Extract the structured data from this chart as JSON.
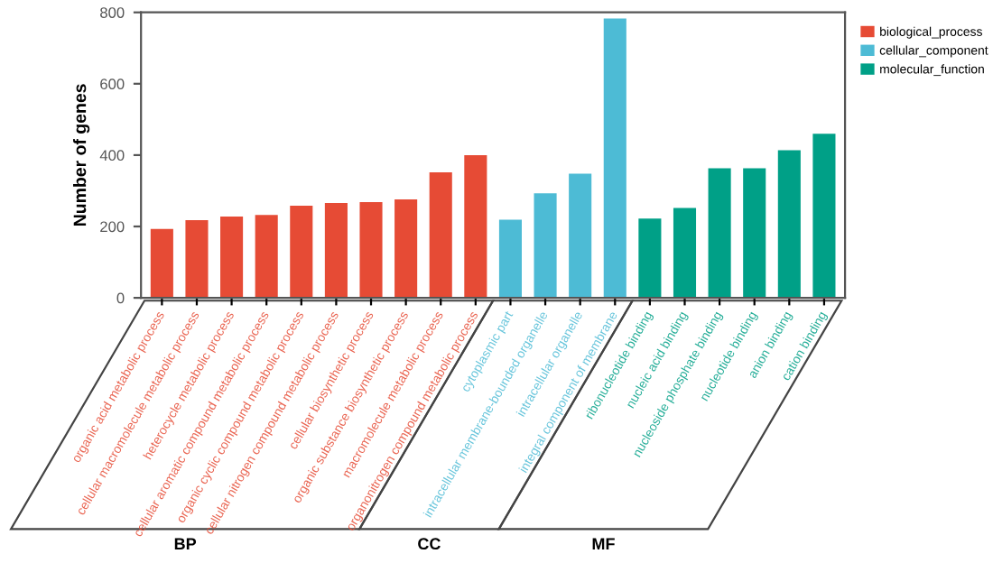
{
  "chart_data": {
    "type": "bar",
    "ylabel": "Number of genes",
    "categories": [
      "organic acid metabolic process",
      "cellular macromolecule metabolic process",
      "heterocycle metabolic process",
      "cellular aromatic compound metabolic process",
      "organic cyclic compound metabolic process",
      "cellular nitrogen compound metabolic process",
      "cellular biosynthetic process",
      "organic substance biosynthetic process",
      "macromolecule metabolic process",
      "organonitrogen compound metabolic process",
      "cytoplasmic part",
      "intracellular membrane-bounded organelle",
      "intracellular organelle",
      "integral component of membrane",
      "ribonucleotide binding",
      "nucleic acid binding",
      "nucleoside phosphate binding",
      "nucleotide binding",
      "anion binding",
      "cation binding"
    ],
    "series": [
      {
        "name": "biological_process",
        "color": "#e64b35",
        "values": [
          193,
          218,
          228,
          232,
          258,
          266,
          268,
          276,
          352,
          400,
          null,
          null,
          null,
          null,
          null,
          null,
          null,
          null,
          null,
          null
        ]
      },
      {
        "name": "cellular_component",
        "color": "#4dbbd5",
        "values": [
          null,
          null,
          null,
          null,
          null,
          null,
          null,
          null,
          null,
          null,
          219,
          293,
          348,
          783,
          null,
          null,
          null,
          null,
          null,
          null
        ]
      },
      {
        "name": "molecular_function",
        "color": "#00a087",
        "values": [
          null,
          null,
          null,
          null,
          null,
          null,
          null,
          null,
          null,
          null,
          null,
          null,
          null,
          null,
          222,
          252,
          363,
          363,
          414,
          460
        ]
      }
    ],
    "annotations": [
      "BP",
      "CC",
      "MF"
    ],
    "ylim": [
      0,
      800
    ],
    "yticks": [
      0,
      200,
      400,
      600,
      800
    ],
    "grid": false,
    "legend": "top right"
  }
}
